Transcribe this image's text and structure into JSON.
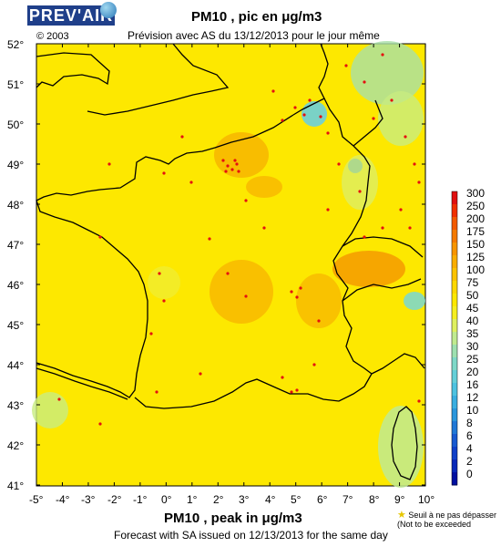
{
  "header": {
    "logo_text": "PREV'AIR",
    "copyright": "© 2003",
    "title_fr": "PM10 , pic en μg/m3",
    "subtitle_fr": "Prévision avec AS du 13/12/2013 pour le jour même"
  },
  "footer": {
    "title_en": "PM10 , peak in μg/m3",
    "subtitle_en": "Forecast with SA issued on 12/13/2013 for the same day"
  },
  "map": {
    "latitude_labels": [
      "52°",
      "51°",
      "50°",
      "49°",
      "48°",
      "47°",
      "46°",
      "45°",
      "44°",
      "43°",
      "42°",
      "41°"
    ],
    "longitude_labels": [
      "-5°",
      "-4°",
      "-3°",
      "-2°",
      "-1°",
      "0°",
      "1°",
      "2°",
      "3°",
      "4°",
      "5°",
      "6°",
      "7°",
      "8°",
      "9°",
      "10°"
    ],
    "background_color": "#fde800",
    "border_color": "#000000"
  },
  "color_scale": {
    "unit": "μg/m3",
    "values": [
      "300",
      "250",
      "200",
      "175",
      "150",
      "125",
      "100",
      "75",
      "50",
      "45",
      "40",
      "35",
      "30",
      "25",
      "20",
      "16",
      "12",
      "10",
      "8",
      "6",
      "4",
      "2",
      "0"
    ],
    "colors": [
      "#e01010",
      "#f03000",
      "#f25a00",
      "#f47a00",
      "#f79500",
      "#f9ad00",
      "#fbc300",
      "#fdd800",
      "#fde800",
      "#f6ef20",
      "#dff060",
      "#c0ea90",
      "#9ee0b0",
      "#7fd8c8",
      "#64cfd8",
      "#4ec2e0",
      "#3aaee0",
      "#2a96dc",
      "#2078d6",
      "#185ad0",
      "#1040c8",
      "#0828b8",
      "#0010a0"
    ]
  },
  "legend_note": {
    "line1": "Seuil à ne pas dépasser",
    "line2": "(Not to be exceeded"
  }
}
